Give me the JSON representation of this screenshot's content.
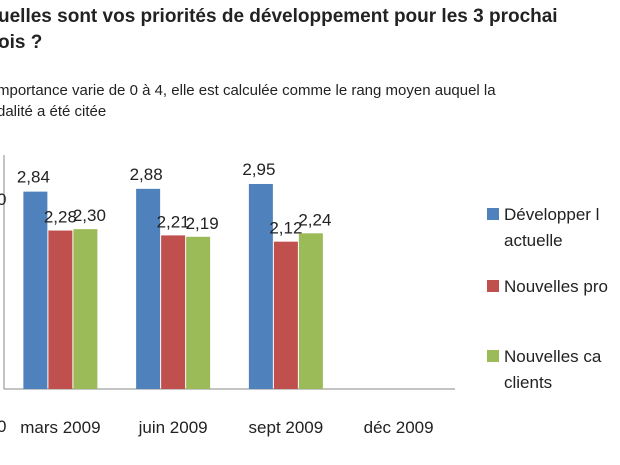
{
  "chart_data": {
    "type": "bar",
    "title_lines": [
      "uelles sont vos priorités de développement pour les 3 prochai",
      "ois ?"
    ],
    "subtitle_lines": [
      "mportance varie de 0 à 4, elle est calculée comme le rang moyen auquel la",
      "dalité a été citée"
    ],
    "axis_stubs": [
      "0",
      "0"
    ],
    "categories": [
      "mars 2009",
      "juin 2009",
      "sept 2009",
      "déc 2009"
    ],
    "series": [
      {
        "name_lines": [
          "Développer l",
          "actuelle"
        ],
        "color": "#4f81bd",
        "values": [
          2.84,
          2.88,
          2.95,
          null
        ],
        "labels": [
          "2,84",
          "2,88",
          "2,95",
          ""
        ]
      },
      {
        "name_lines": [
          "Nouvelles pro"
        ],
        "color": "#c0504d",
        "values": [
          2.28,
          2.21,
          2.12,
          null
        ],
        "labels": [
          "2,28",
          "2,21",
          "2,12",
          ""
        ]
      },
      {
        "name_lines": [
          "Nouvelles ca",
          "clients"
        ],
        "color": "#9bbb59",
        "values": [
          2.3,
          2.19,
          2.24,
          null
        ],
        "labels": [
          "2,30",
          "2,19",
          "2,24",
          ""
        ]
      }
    ],
    "ylim": [
      0,
      4
    ],
    "grid": false,
    "legend_position": "right"
  }
}
